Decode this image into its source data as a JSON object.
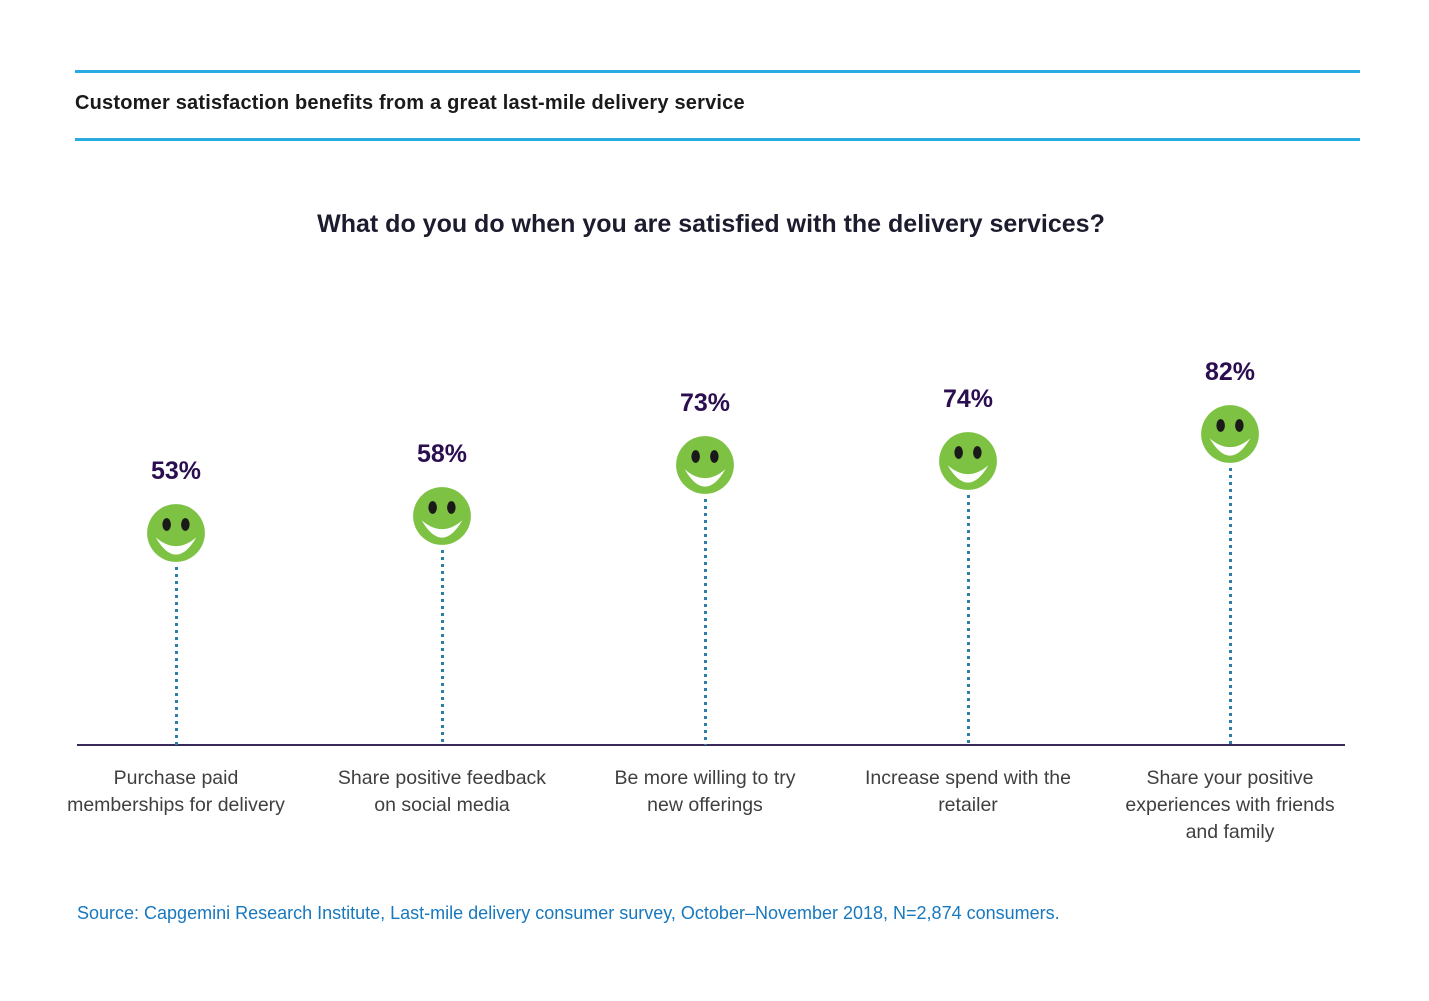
{
  "page": {
    "header": "Customer satisfaction benefits from a great last-mile delivery service",
    "source": "Source: Capgemini Research Institute, Last-mile delivery consumer survey, October–November 2018, N=2,874 consumers."
  },
  "chart_data": {
    "type": "bar",
    "variant": "lollipop-pictogram",
    "marker_icon": "smiley-face-icon",
    "title": "What do you do when you are satisfied with the delivery services?",
    "categories": [
      "Purchase paid memberships for delivery",
      "Share positive feedback on social media",
      "Be more willing to try new offerings",
      "Increase spend with the retailer",
      "Share your positive experiences with friends and family"
    ],
    "values": [
      53,
      58,
      73,
      74,
      82
    ],
    "value_labels": [
      "53%",
      "58%",
      "73%",
      "74%",
      "82%"
    ],
    "unit": "%",
    "ylim": [
      0,
      100
    ],
    "grid": false,
    "legend": "none",
    "xlabel": "",
    "ylabel": ""
  },
  "colors": {
    "accent_rule": "#29abe2",
    "smiley_green": "#7dc242",
    "smiley_eyes": "#1a1a1a",
    "smiley_mouth": "#ffffff",
    "value_label": "#2b0e4f",
    "stem_dotted": "#2e7fa8",
    "baseline": "#3a2a5a",
    "category_text": "#3f3f3f",
    "source_text": "#1878be"
  }
}
